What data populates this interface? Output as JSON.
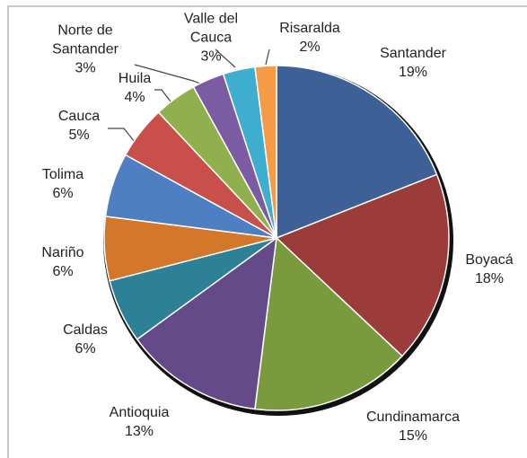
{
  "chart_data": {
    "type": "pie",
    "categories": [
      "Santander",
      "Boyacá",
      "Cundinamarca",
      "Antioquia",
      "Caldas",
      "Nariño",
      "Tolima",
      "Cauca",
      "Huila",
      "Norte de Santander",
      "Valle del Cauca",
      "Risaralda"
    ],
    "values": [
      19,
      18,
      15,
      13,
      6,
      6,
      6,
      5,
      4,
      3,
      3,
      2
    ],
    "value_labels": [
      "19%",
      "18%",
      "15%",
      "13%",
      "6%",
      "6%",
      "6%",
      "5%",
      "4%",
      "3%",
      "3%",
      "2%"
    ],
    "colors": [
      "#3d6096",
      "#9b3b3a",
      "#7a9a3e",
      "#654a8a",
      "#2d8197",
      "#d3772a",
      "#4f7fc3",
      "#c9504a",
      "#8fb04c",
      "#7b5ca3",
      "#3eaed0",
      "#f59a45"
    ]
  }
}
